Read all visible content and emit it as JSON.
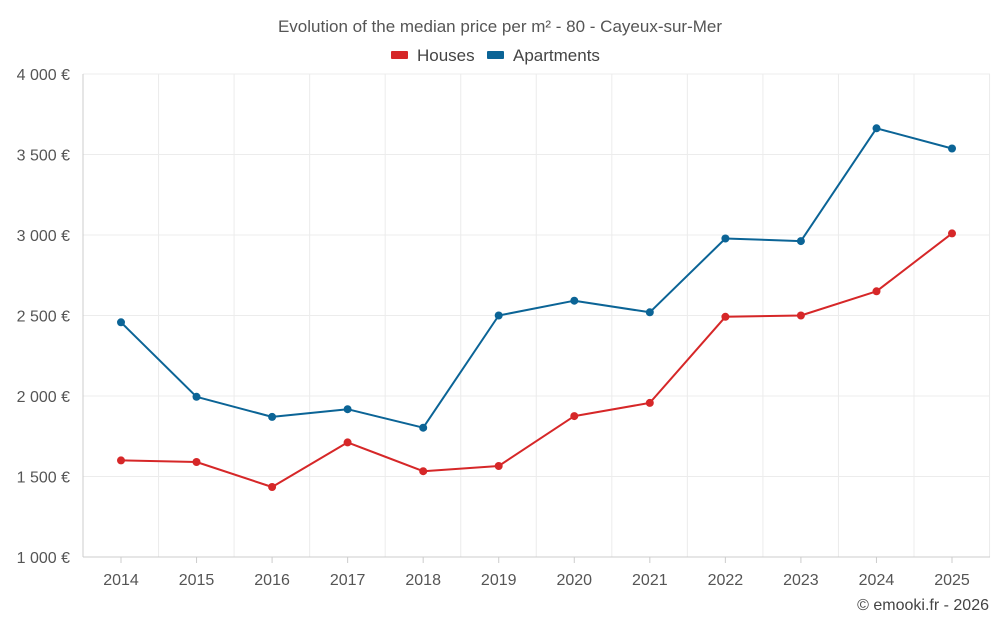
{
  "chart_data": {
    "type": "line",
    "title": "Evolution of the median price per m² - 80 - Cayeux-sur-Mer",
    "xlabel": "",
    "ylabel": "",
    "categories": [
      "2014",
      "2015",
      "2016",
      "2017",
      "2018",
      "2019",
      "2020",
      "2021",
      "2022",
      "2023",
      "2024",
      "2025"
    ],
    "ylim": [
      1000,
      4000
    ],
    "yticks": [
      {
        "value": 1000,
        "label": "1 000 €"
      },
      {
        "value": 1500,
        "label": "1 500 €"
      },
      {
        "value": 2000,
        "label": "2 000 €"
      },
      {
        "value": 2500,
        "label": "2 500 €"
      },
      {
        "value": 3000,
        "label": "3 000 €"
      },
      {
        "value": 3500,
        "label": "3 500 €"
      },
      {
        "value": 4000,
        "label": "4 000 €"
      }
    ],
    "grid": true,
    "legend_position": "top-center",
    "series": [
      {
        "name": "Houses",
        "color": "#d62728",
        "values": [
          1600,
          1590,
          1435,
          1712,
          1533,
          1565,
          1875,
          1957,
          2492,
          2500,
          2650,
          3010
        ]
      },
      {
        "name": "Apartments",
        "color": "#0b6496",
        "values": [
          2458,
          1995,
          1870,
          1918,
          1803,
          2500,
          2592,
          2520,
          2978,
          2962,
          3663,
          3537
        ]
      }
    ],
    "credit": "© emooki.fr - 2026"
  }
}
